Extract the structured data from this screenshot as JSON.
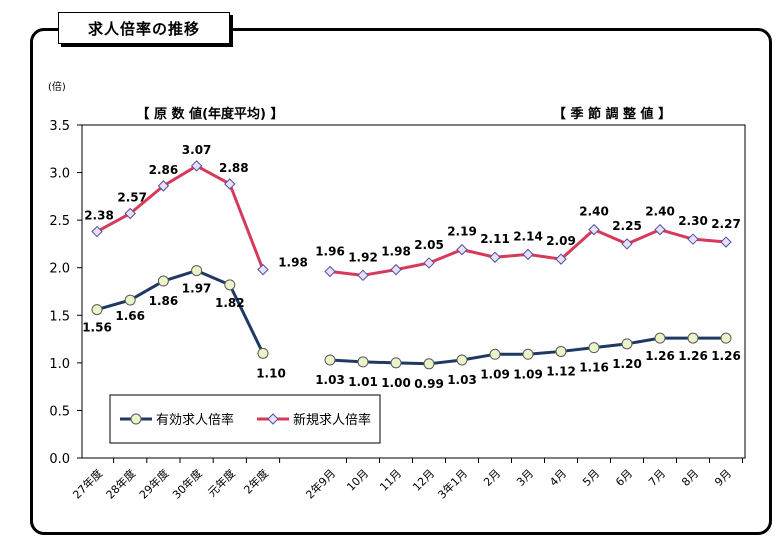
{
  "page_title": "求人倍率の推移",
  "chart_data": {
    "type": "line",
    "y_unit": "(倍)",
    "ylim": [
      0,
      3.5
    ],
    "y_ticks": [
      "0.0",
      "0.5",
      "1.0",
      "1.5",
      "2.0",
      "2.5",
      "3.0",
      "3.5"
    ],
    "grid": false,
    "legend_position": "bottom-left",
    "segments": [
      {
        "heading": "【 原 数 値(年度平均) 】",
        "categories": [
          "27年度",
          "28年度",
          "29年度",
          "30年度",
          "元年度",
          "2年度"
        ]
      },
      {
        "heading": "【 季 節 調 整 値 】",
        "categories": [
          "2年9月",
          "10月",
          "11月",
          "12月",
          "3年1月",
          "2月",
          "3月",
          "4月",
          "5月",
          "6月",
          "7月",
          "8月",
          "9月"
        ]
      }
    ],
    "series": [
      {
        "name": "有効求人倍率",
        "color": "#1f3864",
        "marker": "circle",
        "marker_color": "#e9f5c8",
        "annual": [
          1.56,
          1.66,
          1.86,
          1.97,
          1.82,
          1.1
        ],
        "seasonal": [
          1.03,
          1.01,
          1.0,
          0.99,
          1.03,
          1.09,
          1.09,
          1.12,
          1.16,
          1.2,
          1.26,
          1.26,
          1.26
        ]
      },
      {
        "name": "新規求人倍率",
        "color": "#d63a5a",
        "marker": "diamond",
        "marker_color": "#e6e2f5",
        "annual": [
          2.38,
          2.57,
          2.86,
          3.07,
          2.88,
          1.98
        ],
        "seasonal": [
          1.96,
          1.92,
          1.98,
          2.05,
          2.19,
          2.11,
          2.14,
          2.09,
          2.4,
          2.25,
          2.4,
          2.3,
          2.27
        ]
      }
    ]
  }
}
